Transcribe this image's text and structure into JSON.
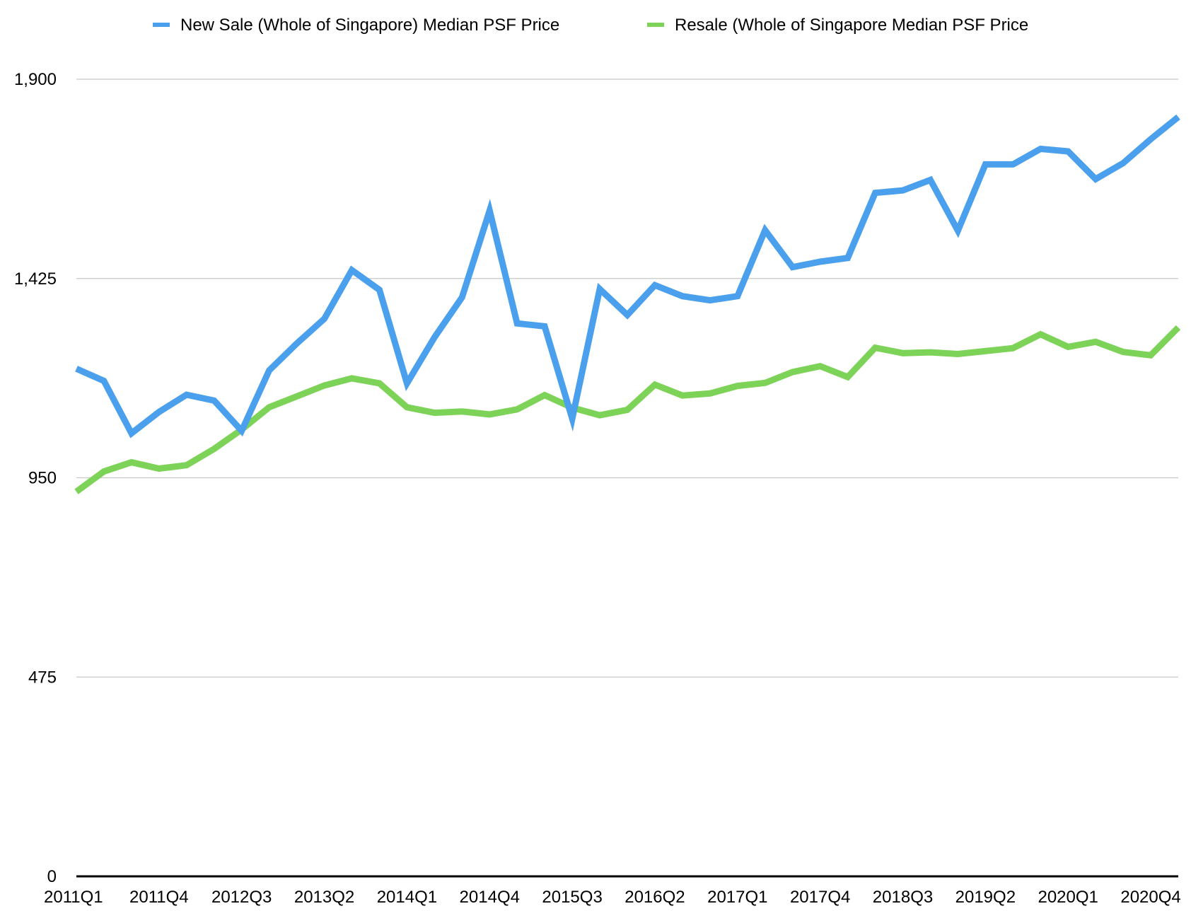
{
  "colors": {
    "new_sale": "#4aa0ec",
    "resale": "#7dd357",
    "grid": "#c8c8c8",
    "axis": "#000000",
    "background": "#ffffff"
  },
  "chart_data": {
    "type": "line",
    "title": "",
    "xlabel": "",
    "ylabel": "",
    "ylim": [
      0,
      1900
    ],
    "yticks": [
      0,
      475,
      950,
      1425,
      1900
    ],
    "ytick_labels": [
      "0",
      "475",
      "950",
      "1,425",
      "1,900"
    ],
    "grid": true,
    "legend_position": "top",
    "categories": [
      "2011Q1",
      "2011Q2",
      "2011Q3",
      "2011Q4",
      "2012Q1",
      "2012Q2",
      "2012Q3",
      "2012Q4",
      "2013Q1",
      "2013Q2",
      "2013Q3",
      "2013Q4",
      "2014Q1",
      "2014Q2",
      "2014Q3",
      "2014Q4",
      "2015Q1",
      "2015Q2",
      "2015Q3",
      "2015Q4",
      "2016Q1",
      "2016Q2",
      "2016Q3",
      "2016Q4",
      "2017Q1",
      "2017Q2",
      "2017Q3",
      "2017Q4",
      "2018Q1",
      "2018Q2",
      "2018Q3",
      "2018Q4",
      "2019Q1",
      "2019Q2",
      "2019Q3",
      "2019Q4",
      "2020Q1",
      "2020Q2",
      "2020Q3",
      "2020Q4",
      "2021Q1"
    ],
    "xtick_labels": [
      "2011Q1",
      "2011Q4",
      "2012Q3",
      "2013Q2",
      "2014Q1",
      "2014Q4",
      "2015Q3",
      "2016Q2",
      "2017Q1",
      "2017Q4",
      "2018Q3",
      "2019Q2",
      "2020Q1",
      "2020Q4"
    ],
    "series": [
      {
        "name": "New Sale (Whole of Singapore) Median PSF Price",
        "values": [
          1210,
          1181,
          1056,
          1107,
          1148,
          1134,
          1062,
          1206,
          1270,
          1329,
          1445,
          1398,
          1175,
          1285,
          1380,
          1587,
          1318,
          1311,
          1091,
          1400,
          1338,
          1409,
          1383,
          1373,
          1383,
          1540,
          1452,
          1465,
          1474,
          1629,
          1635,
          1660,
          1539,
          1697,
          1697,
          1734,
          1728,
          1662,
          1700,
          1757,
          1810
        ]
      },
      {
        "name": "Resale (Whole of Singapore Median PSF Price",
        "values": [
          917,
          965,
          987,
          972,
          980,
          1019,
          1065,
          1118,
          1144,
          1170,
          1187,
          1175,
          1118,
          1105,
          1108,
          1101,
          1113,
          1147,
          1117,
          1099,
          1112,
          1172,
          1146,
          1151,
          1169,
          1176,
          1202,
          1216,
          1190,
          1260,
          1247,
          1249,
          1245,
          1252,
          1259,
          1292,
          1262,
          1274,
          1250,
          1242,
          1308
        ]
      }
    ]
  }
}
